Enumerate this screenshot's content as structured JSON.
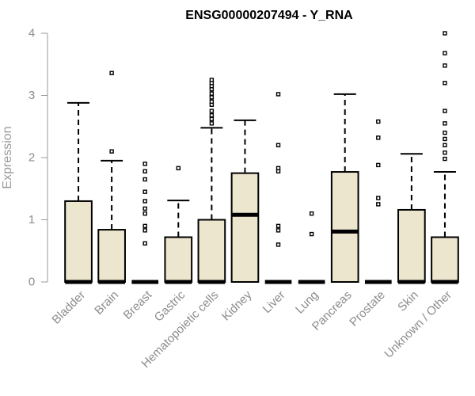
{
  "chart_data": {
    "type": "box",
    "title": "ENSG00000207494 - Y_RNA",
    "xlabel": "",
    "ylabel": "Expression",
    "ylim": [
      0,
      4
    ],
    "yticks": [
      0,
      1,
      2,
      3,
      4
    ],
    "box_color": "#ede6cf",
    "categories": [
      "Bladder",
      "Brain",
      "Breast",
      "Gastric",
      "Hematopoietic cells",
      "Kidney",
      "Liver",
      "Lung",
      "Pancreas",
      "Prostate",
      "Skin",
      "Unknown / Other"
    ],
    "boxes": [
      {
        "category": "Bladder",
        "q1": 0,
        "median": 0,
        "q3": 1.3,
        "whisker_low": 0,
        "whisker_high": 2.88,
        "outliers": []
      },
      {
        "category": "Brain",
        "q1": 0,
        "median": 0,
        "q3": 0.84,
        "whisker_low": 0,
        "whisker_high": 1.95,
        "outliers": [
          2.1,
          3.36
        ]
      },
      {
        "category": "Breast",
        "q1": 0,
        "median": 0,
        "q3": 0,
        "whisker_low": 0,
        "whisker_high": 0,
        "outliers": [
          0.62,
          0.83,
          0.9,
          1.1,
          1.18,
          1.3,
          1.45,
          1.65,
          1.78,
          1.9
        ]
      },
      {
        "category": "Gastric",
        "q1": 0,
        "median": 0,
        "q3": 0.72,
        "whisker_low": 0,
        "whisker_high": 1.31,
        "outliers": [
          1.83
        ]
      },
      {
        "category": "Hematopoietic cells",
        "q1": 0,
        "median": 0,
        "q3": 1.0,
        "whisker_low": 0,
        "whisker_high": 2.48,
        "outliers": [
          2.55,
          2.62,
          2.68,
          2.75,
          2.85,
          2.9,
          2.97,
          3.03,
          3.1,
          3.15,
          3.2,
          3.25
        ]
      },
      {
        "category": "Kidney",
        "q1": 0,
        "median": 1.08,
        "q3": 1.75,
        "whisker_low": 0,
        "whisker_high": 2.6,
        "outliers": []
      },
      {
        "category": "Liver",
        "q1": 0,
        "median": 0,
        "q3": 0,
        "whisker_low": 0,
        "whisker_high": 0,
        "outliers": [
          0.6,
          0.83,
          0.9,
          1.78,
          1.83,
          2.2,
          3.02
        ]
      },
      {
        "category": "Lung",
        "q1": 0,
        "median": 0,
        "q3": 0,
        "whisker_low": 0,
        "whisker_high": 0,
        "outliers": [
          0.77,
          1.1
        ]
      },
      {
        "category": "Pancreas",
        "q1": 0,
        "median": 0.81,
        "q3": 1.77,
        "whisker_low": 0,
        "whisker_high": 3.02,
        "outliers": []
      },
      {
        "category": "Prostate",
        "q1": 0,
        "median": 0,
        "q3": 0,
        "whisker_low": 0,
        "whisker_high": 0,
        "outliers": [
          1.25,
          1.35,
          1.88,
          2.32,
          2.58
        ]
      },
      {
        "category": "Skin",
        "q1": 0,
        "median": 0,
        "q3": 1.16,
        "whisker_low": 0,
        "whisker_high": 2.06,
        "outliers": []
      },
      {
        "category": "Unknown / Other",
        "q1": 0,
        "median": 0,
        "q3": 0.72,
        "whisker_low": 0,
        "whisker_high": 1.77,
        "outliers": [
          1.98,
          2.08,
          2.2,
          2.3,
          2.4,
          2.55,
          2.75,
          3.2,
          3.48,
          3.68,
          4.0
        ]
      }
    ]
  }
}
